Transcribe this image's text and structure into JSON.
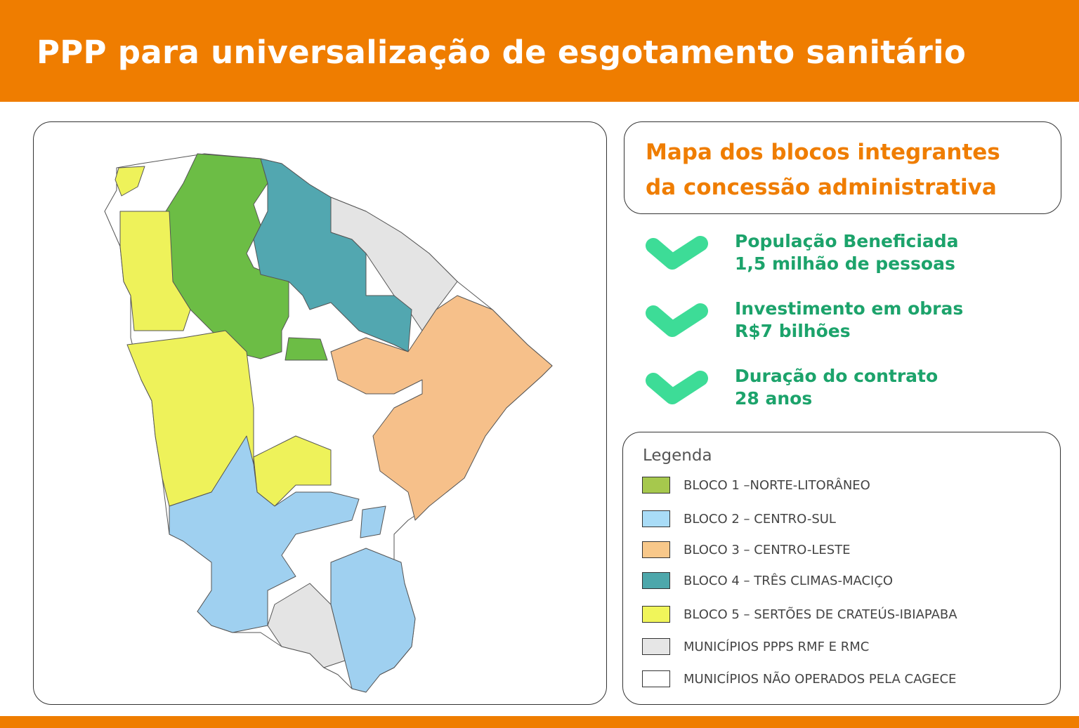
{
  "header": {
    "title": "PPP para universalização de esgotamento sanitário"
  },
  "info": {
    "heading": [
      "Mapa dos blocos integrantes",
      "da concessão administrativa"
    ]
  },
  "highlights": [
    {
      "label": "População Beneficiada",
      "value": "1,5 milhão de pessoas"
    },
    {
      "label": "Investimento em obras",
      "value": "R$7 bilhões"
    },
    {
      "label": "Duração do contrato",
      "value": "28 anos"
    }
  ],
  "legend": {
    "title": "Legenda",
    "items": [
      {
        "label": "BLOCO 1 –NORTE-LITORÂNEO",
        "color": "#a6c84d"
      },
      {
        "label": "BLOCO 2 – CENTRO-SUL",
        "color": "#a9dcf7"
      },
      {
        "label": "BLOCO 3 – CENTRO-LESTE",
        "color": "#f8c88a"
      },
      {
        "label": "BLOCO 4 – TRÊS CLIMAS-MACIÇO",
        "color": "#4da7ab"
      },
      {
        "label": "BLOCO 5 – SERTÕES DE CRATEÚS-IBIAPABA",
        "color": "#f0f55a"
      },
      {
        "label": "MUNICÍPIOS PPPS RMF E RMC",
        "color": "#e6e6e6"
      },
      {
        "label": "MUNICÍPIOS NÃO OPERADOS PELA CAGECE",
        "color": "#ffffff"
      }
    ]
  }
}
